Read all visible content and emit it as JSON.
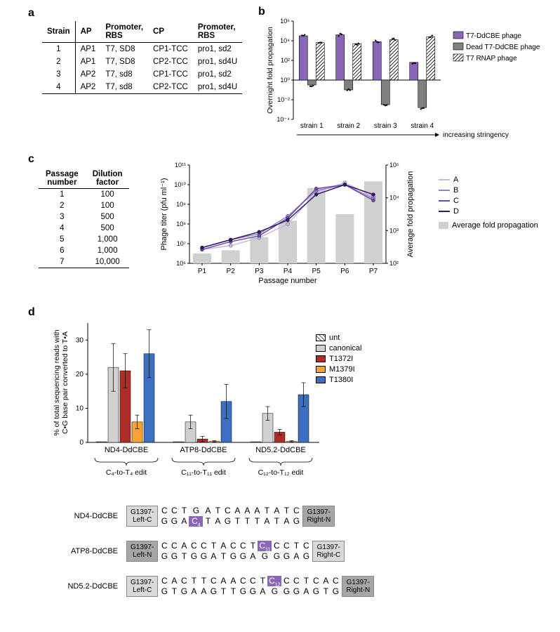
{
  "panel_labels": {
    "a": "a",
    "b": "b",
    "c": "c",
    "d": "d"
  },
  "panel_a": {
    "headers": [
      "Strain",
      "AP",
      "Promoter,\nRBS",
      "CP",
      "Promoter,\nRBS"
    ],
    "rows": [
      [
        "1",
        "AP1",
        "T7, SD8",
        "CP1-TCC",
        "pro1, sd2"
      ],
      [
        "2",
        "AP1",
        "T7, SD8",
        "CP2-TCC",
        "pro1, sd4U"
      ],
      [
        "3",
        "AP2",
        "T7, sd8",
        "CP1-TCC",
        "pro1, sd2"
      ],
      [
        "4",
        "AP2",
        "T7, sd8",
        "CP2-TCC",
        "pro1, sd4U"
      ]
    ]
  },
  "panel_b": {
    "y_label": "Overnight fold propagation",
    "y_ticks": [
      "10⁻⁴",
      "10⁻²",
      "10⁰",
      "10²",
      "10⁴",
      "10⁶"
    ],
    "y_min": -4,
    "y_max": 6,
    "categories": [
      "strain 1",
      "strain 2",
      "strain 3",
      "strain 4"
    ],
    "arrow_label": "increasing stringency",
    "legend": [
      {
        "label": "T7-DdCBE phage",
        "color": "#8966b8",
        "pattern": "solid"
      },
      {
        "label": "Dead T7-DdCBE phage",
        "color": "#808080",
        "pattern": "solid"
      },
      {
        "label": "T7 RNAP phage",
        "color": "#ffffff",
        "pattern": "hatch"
      }
    ],
    "series": {
      "t7_ddcbe": [
        4.5,
        4.6,
        3.9,
        1.8
      ],
      "dead": [
        -0.5,
        -1.0,
        -2.5,
        -2.8
      ],
      "t7_rnap": [
        3.8,
        3.7,
        4.1,
        4.4
      ]
    },
    "colors": {
      "t7_ddcbe": "#8966b8",
      "dead": "#808080",
      "t7_rnap_stroke": "#000000"
    }
  },
  "panel_c": {
    "table_headers": [
      "Passage\nnumber",
      "Dilution\nfactor"
    ],
    "table_rows": [
      [
        "1",
        "100"
      ],
      [
        "2",
        "100"
      ],
      [
        "3",
        "500"
      ],
      [
        "4",
        "500"
      ],
      [
        "5",
        "1,000"
      ],
      [
        "6",
        "1,000"
      ],
      [
        "7",
        "10,000"
      ]
    ],
    "y_left_label": "Phage titer (pfu ml⁻¹)",
    "y_right_label": "Average fold propagation",
    "x_label": "Passage number",
    "x_ticks": [
      "P1",
      "P2",
      "P3",
      "P4",
      "P5",
      "P6",
      "P7"
    ],
    "y_left_ticks": [
      "10⁶",
      "10⁷",
      "10⁸",
      "10⁹",
      "10¹⁰",
      "10¹¹"
    ],
    "y_right_ticks": [
      "10²",
      "10³",
      "10⁴",
      "10⁵"
    ],
    "y_left_min": 6,
    "y_left_max": 11,
    "y_right_min": 2,
    "y_right_max": 5,
    "line_colors": {
      "A": "#c7b8e0",
      "B": "#9b80c9",
      "C": "#6a4da8",
      "D": "#2e1a6b"
    },
    "bar_color": "#d0d0d0",
    "lines": {
      "A": [
        6.7,
        6.9,
        7.3,
        8.0,
        9.6,
        10.1,
        9.4
      ],
      "B": [
        6.8,
        7.2,
        7.5,
        8.4,
        9.7,
        10.0,
        9.3
      ],
      "C": [
        6.7,
        7.1,
        7.4,
        8.3,
        9.8,
        10.0,
        9.2
      ],
      "D": [
        6.8,
        7.2,
        7.6,
        8.2,
        9.5,
        10.0,
        9.5
      ]
    },
    "bars_right": [
      2.3,
      2.4,
      2.8,
      3.3,
      4.3,
      3.5,
      4.5
    ],
    "legend": [
      {
        "label": "A",
        "color": "#c7b8e0"
      },
      {
        "label": "B",
        "color": "#9b80c9"
      },
      {
        "label": "C",
        "color": "#6a4da8"
      },
      {
        "label": "D",
        "color": "#2e1a6b"
      },
      {
        "label": "Average fold propagation",
        "color": "#d0d0d0",
        "box": true
      }
    ]
  },
  "panel_d": {
    "y_label": "% of total sequencing reads with\nC•G base pair converted to T•A",
    "y_ticks": [
      0,
      10,
      20,
      30
    ],
    "y_max": 35,
    "groups": [
      "ND4-DdCBE",
      "ATP8-DdCBE",
      "ND5.2-DdCBE"
    ],
    "brace_labels": [
      "C₄-to-T₄ edit",
      "C₁₁-to-T₁₁ edit",
      "C₁₂-to-T₁₂ edit"
    ],
    "legend": [
      {
        "label": "unt",
        "color": "#ffffff",
        "pattern": "hatch"
      },
      {
        "label": "canonical",
        "color": "#d0d0d0"
      },
      {
        "label": "T1372I",
        "color": "#b02d2a"
      },
      {
        "label": "M1379I",
        "color": "#f5a431"
      },
      {
        "label": "T1380I",
        "color": "#3c6fbf"
      }
    ],
    "series": {
      "ND4": {
        "unt": 0.2,
        "canonical": 22,
        "T1372I": 21,
        "M1379I": 6,
        "T1380I": 26
      },
      "ATP8": {
        "unt": 0.2,
        "canonical": 6,
        "T1372I": 1,
        "M1379I": 0.3,
        "T1380I": 12
      },
      "ND5.2": {
        "unt": 0.2,
        "canonical": 8.5,
        "T1372I": 3,
        "M1379I": 0.3,
        "T1380I": 14
      }
    },
    "errors": {
      "ND4": {
        "canonical": 7,
        "T1372I": 5,
        "M1379I": 2,
        "T1380I": 7
      },
      "ATP8": {
        "canonical": 2,
        "T1372I": 0.8,
        "M1379I": 0.2,
        "T1380I": 5
      },
      "ND5.2": {
        "canonical": 2,
        "T1372I": 0.8,
        "M1379I": 0.2,
        "T1380I": 3.5
      }
    }
  },
  "sequences": [
    {
      "name": "ND4-DdCBE",
      "left": {
        "text": "G1397-\nLeft-C",
        "shade": "light"
      },
      "right": {
        "text": "G1397-\nRight-N",
        "shade": "dark"
      },
      "top": [
        "C",
        "C",
        "T",
        "G",
        "A",
        "T",
        "C",
        "A",
        "A",
        "A",
        "T",
        "A",
        "T",
        "C"
      ],
      "bottom": [
        "G",
        "G",
        "A",
        "C",
        "T",
        "A",
        "G",
        "T",
        "T",
        "T",
        "A",
        "T",
        "A",
        "G"
      ],
      "highlight_index": 3,
      "highlight_row": "bottom",
      "highlight_sub": "4"
    },
    {
      "name": "ATP8-DdCBE",
      "left": {
        "text": "G1397-\nLeft-N",
        "shade": "dark"
      },
      "right": {
        "text": "G1397-\nRight-C",
        "shade": "light"
      },
      "top": [
        "C",
        "C",
        "A",
        "C",
        "C",
        "T",
        "A",
        "C",
        "C",
        "T",
        "C",
        "C",
        "C",
        "T",
        "C"
      ],
      "bottom": [
        "G",
        "G",
        "T",
        "G",
        "G",
        "A",
        "T",
        "G",
        "G",
        "A",
        "G",
        "G",
        "G",
        "A",
        "G"
      ],
      "highlight_index": 10,
      "highlight_row": "top",
      "highlight_sub": "11"
    },
    {
      "name": "ND5.2-DdCBE",
      "left": {
        "text": "G1397-\nLeft-C",
        "shade": "light"
      },
      "right": {
        "text": "G1397-\nRight-N",
        "shade": "dark"
      },
      "top": [
        "C",
        "A",
        "C",
        "T",
        "T",
        "C",
        "A",
        "A",
        "C",
        "C",
        "T",
        "C",
        "C",
        "C",
        "T",
        "C",
        "A",
        "C"
      ],
      "bottom": [
        "G",
        "T",
        "G",
        "A",
        "A",
        "G",
        "T",
        "T",
        "G",
        "G",
        "A",
        "G",
        "G",
        "G",
        "A",
        "G",
        "T",
        "G"
      ],
      "highlight_index": 11,
      "highlight_row": "top",
      "highlight_sub": "12"
    }
  ]
}
